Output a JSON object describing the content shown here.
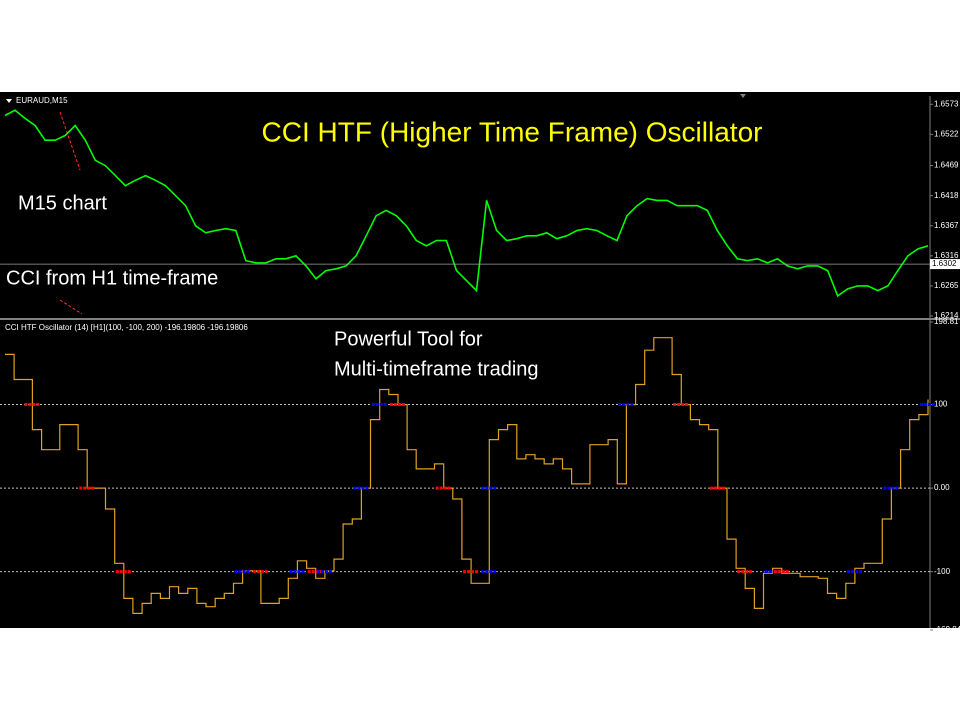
{
  "chart_data": [
    {
      "type": "line",
      "label": "EURAUD,M15",
      "title": "CCI HTF (Higher Time Frame) Oscillator",
      "annotations": [
        "M15 chart",
        "CCI from H1 time-frame"
      ],
      "color": "#00ff00",
      "values": [
        1.6554,
        1.6563,
        1.6549,
        1.6537,
        1.6512,
        1.6512,
        1.652,
        1.6537,
        1.6512,
        1.6478,
        1.6469,
        1.6452,
        1.6435,
        1.6444,
        1.6452,
        1.6444,
        1.6435,
        1.6418,
        1.6401,
        1.6367,
        1.6355,
        1.6359,
        1.6362,
        1.6359,
        1.6308,
        1.6304,
        1.6304,
        1.6311,
        1.6311,
        1.6316,
        1.6299,
        1.6277,
        1.6291,
        1.6294,
        1.6299,
        1.6316,
        1.635,
        1.6384,
        1.6393,
        1.6384,
        1.6367,
        1.6342,
        1.6333,
        1.6342,
        1.6342,
        1.6291,
        1.6274,
        1.6257,
        1.641,
        1.6359,
        1.6342,
        1.6345,
        1.635,
        1.635,
        1.6355,
        1.6345,
        1.635,
        1.6359,
        1.6362,
        1.6359,
        1.635,
        1.6342,
        1.6384,
        1.6401,
        1.6413,
        1.641,
        1.641,
        1.6401,
        1.6401,
        1.6401,
        1.6393,
        1.6359,
        1.6333,
        1.6311,
        1.6308,
        1.6311,
        1.6304,
        1.6311,
        1.6299,
        1.6294,
        1.6299,
        1.6299,
        1.6291,
        1.6248,
        1.626,
        1.6265,
        1.6265,
        1.6257,
        1.6265,
        1.6291,
        1.6316,
        1.6328,
        1.6333
      ],
      "current_price": 1.6302,
      "ylim": [
        1.6214,
        1.6587
      ],
      "yticks": [
        1.6573,
        1.6522,
        1.6469,
        1.6418,
        1.6367,
        1.6316,
        1.6265,
        1.6214
      ]
    },
    {
      "type": "step",
      "title": "CCI HTF Oscillator (14) [H1](100, -100, 200) -196.19806 -196.19806",
      "annotations": [
        "Powerful Tool for",
        "Multi-timeframe trading"
      ],
      "color": "#e0a020",
      "up_color": "#0000ff",
      "down_color": "#ff0000",
      "values": [
        160,
        130,
        130,
        70,
        46,
        46,
        76,
        76,
        46,
        0,
        0,
        -25,
        -90,
        -132,
        -150,
        -138,
        -126,
        -132,
        -118,
        -126,
        -120,
        -138,
        -142,
        -132,
        -126,
        -114,
        -99,
        -99,
        -138,
        -138,
        -132,
        -108,
        -87,
        -96,
        -108,
        -99,
        -85,
        -43,
        -37,
        0,
        82,
        118,
        112,
        100,
        46,
        23,
        23,
        29,
        0,
        -13,
        -85,
        -114,
        -114,
        58,
        70,
        76,
        35,
        40,
        35,
        29,
        35,
        23,
        5,
        5,
        52,
        52,
        58,
        5,
        100,
        124,
        165,
        180,
        180,
        136,
        100,
        82,
        76,
        70,
        0,
        -61,
        -96,
        -120,
        -144,
        -102,
        -96,
        -102,
        -102,
        -106,
        -106,
        -108,
        -126,
        -132,
        -114,
        -96,
        -90,
        -90,
        -37,
        0,
        46,
        82,
        88,
        106
      ],
      "levels": [
        100,
        0,
        -100
      ],
      "ylim": [
        -169.84,
        198.81
      ],
      "yticks": [
        198.81,
        100,
        {
          "value": 0,
          "label": "0.00"
        },
        -100,
        -169.84
      ]
    }
  ]
}
